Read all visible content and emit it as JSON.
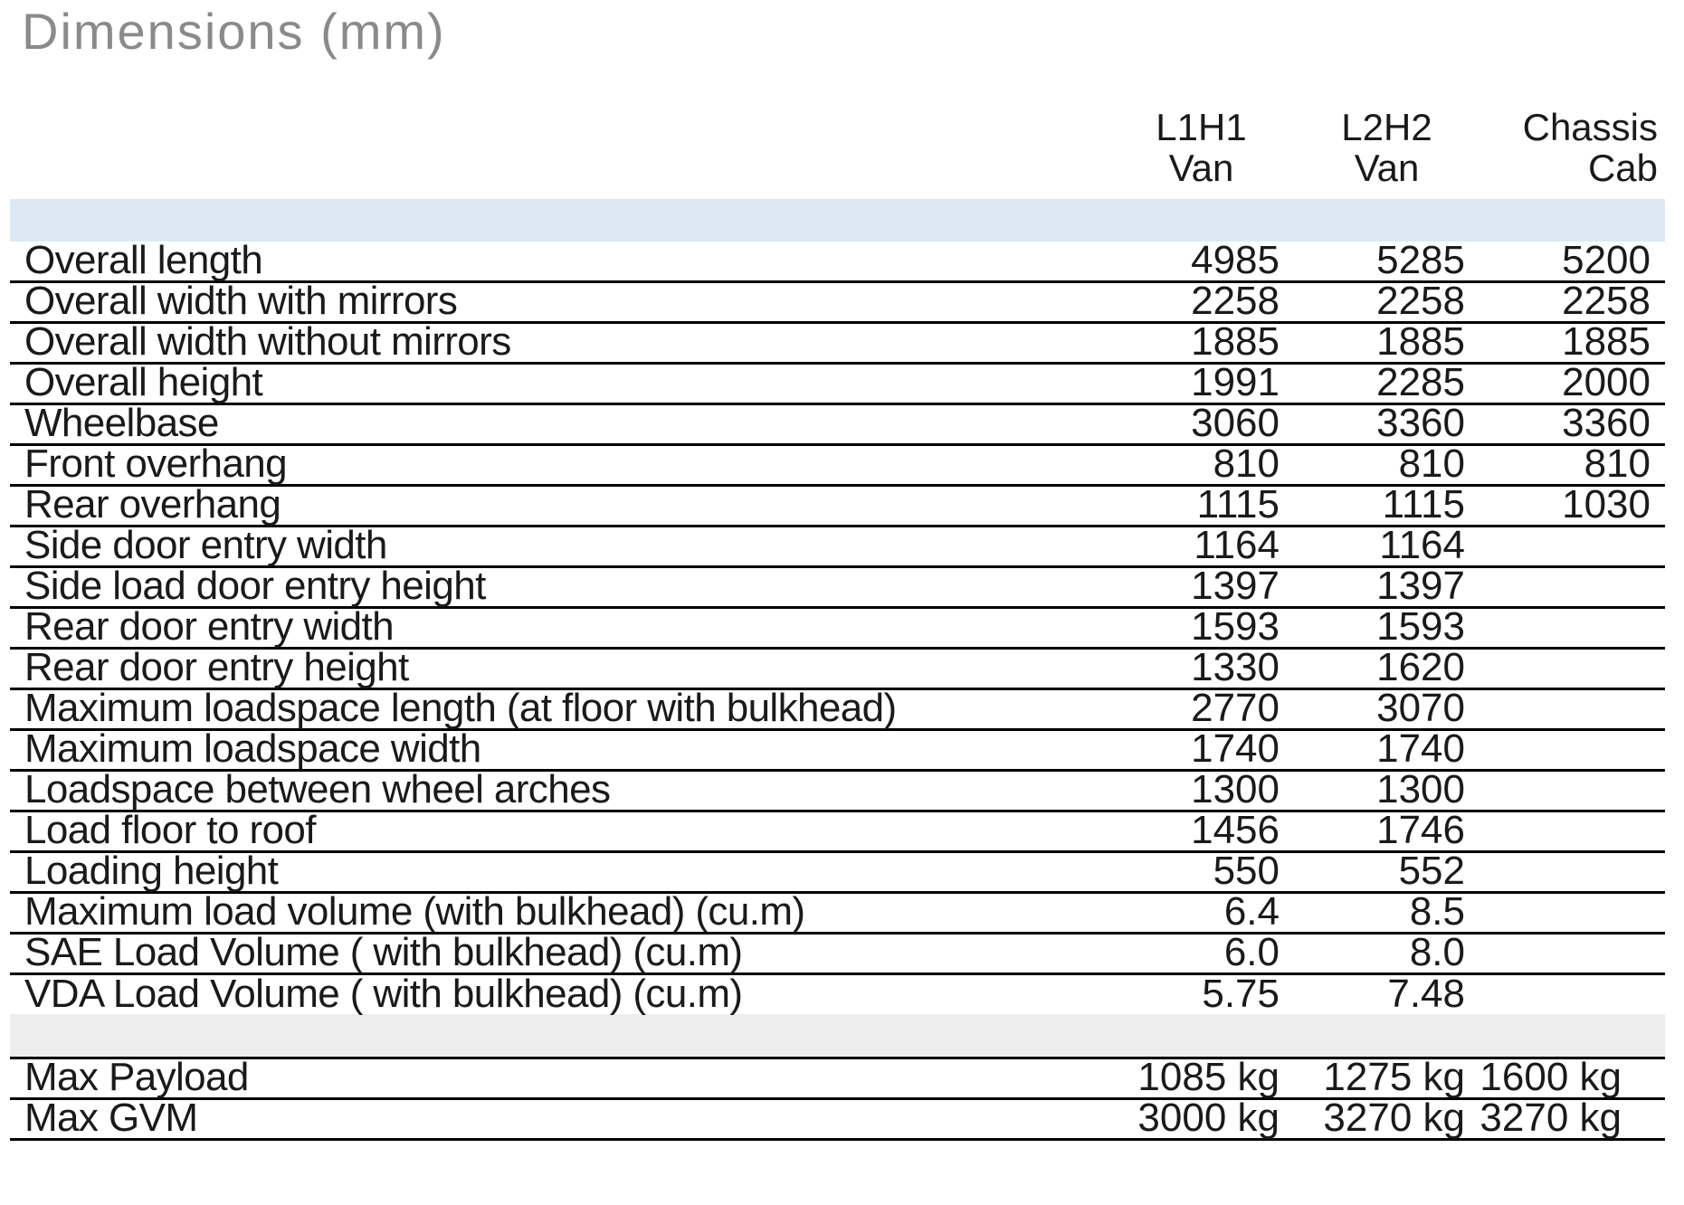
{
  "title": "Dimensions (mm)",
  "colors": {
    "title_gray": "#8a8a8a",
    "text": "#1a1a1a",
    "band_blue": "#dce9f5",
    "band_gray": "#ededed",
    "border": "#000000"
  },
  "table": {
    "column_headers": [
      {
        "line1": "L1H1",
        "line2": "Van"
      },
      {
        "line1": "L2H2",
        "line2": "Van"
      },
      {
        "line1": "Chassis",
        "line2": "Cab"
      }
    ],
    "rows": [
      {
        "label": "Overall length",
        "values": [
          "4985",
          "5285",
          "5200"
        ]
      },
      {
        "label": "Overall width with mirrors",
        "values": [
          "2258",
          "2258",
          "2258"
        ]
      },
      {
        "label": "Overall width without mirrors",
        "values": [
          "1885",
          "1885",
          "1885"
        ]
      },
      {
        "label": "Overall height",
        "values": [
          "1991",
          "2285",
          "2000"
        ]
      },
      {
        "label": "Wheelbase",
        "values": [
          "3060",
          "3360",
          "3360"
        ]
      },
      {
        "label": "Front overhang",
        "values": [
          "810",
          "810",
          "810"
        ]
      },
      {
        "label": "Rear overhang",
        "values": [
          "1115",
          "1115",
          "1030"
        ]
      },
      {
        "label": "Side door entry width",
        "values": [
          "1164",
          "1164",
          ""
        ]
      },
      {
        "label": "Side load door entry height",
        "values": [
          "1397",
          "1397",
          ""
        ]
      },
      {
        "label": "Rear door entry width",
        "values": [
          "1593",
          "1593",
          ""
        ]
      },
      {
        "label": "Rear door entry height",
        "values": [
          "1330",
          "1620",
          ""
        ]
      },
      {
        "label": "Maximum loadspace length (at floor with bulkhead)",
        "values": [
          "2770",
          "3070",
          ""
        ]
      },
      {
        "label": "Maximum loadspace width",
        "values": [
          "1740",
          "1740",
          ""
        ]
      },
      {
        "label": "Loadspace between wheel arches",
        "values": [
          "1300",
          "1300",
          ""
        ]
      },
      {
        "label": "Load floor to roof",
        "values": [
          "1456",
          "1746",
          ""
        ]
      },
      {
        "label": "Loading height",
        "values": [
          "550",
          "552",
          ""
        ]
      },
      {
        "label": "Maximum load volume (with bulkhead) (cu.m)",
        "values": [
          "6.4",
          "8.5",
          ""
        ]
      },
      {
        "label": "SAE Load Volume ( with bulkhead) (cu.m)",
        "values": [
          "6.0",
          "8.0",
          ""
        ]
      },
      {
        "label": "VDA Load Volume ( with bulkhead) (cu.m)",
        "values": [
          "5.75",
          "7.48",
          ""
        ]
      }
    ],
    "footer_rows": [
      {
        "label": "Max Payload",
        "values": [
          "1085 kg",
          "1275 kg",
          "1600 kg"
        ]
      },
      {
        "label": "Max GVM",
        "values": [
          "3000 kg",
          "3270 kg",
          "3270 kg"
        ]
      }
    ]
  }
}
